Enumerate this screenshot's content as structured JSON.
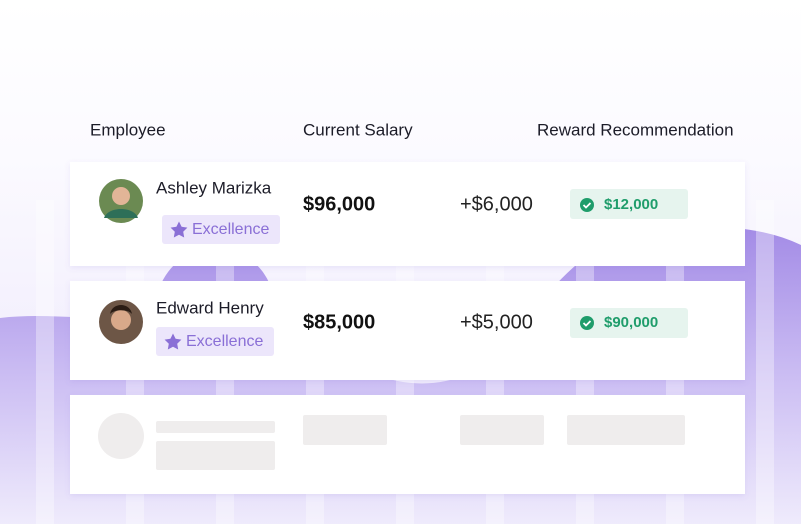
{
  "table": {
    "headers": [
      "Employee",
      "Current Salary",
      "Reward Recommendation"
    ],
    "rows": [
      {
        "name": "Ashley Marizka",
        "badge": "Excellence",
        "salary": "$96,000",
        "raise": "+$6,000",
        "reward": "$12,000"
      },
      {
        "name": "Edward Henry",
        "badge": "Excellence",
        "salary": "$85,000",
        "raise": "+$5,000",
        "reward": "$90,000"
      }
    ]
  }
}
